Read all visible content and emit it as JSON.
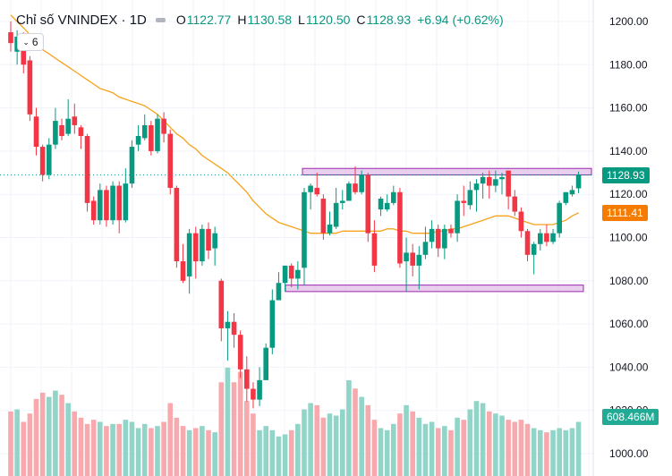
{
  "legend": {
    "title": "Chỉ số VNINDEX · 1D",
    "open_label": "O",
    "open": "1122.77",
    "high_label": "H",
    "high": "1130.58",
    "low_label": "L",
    "low": "1120.50",
    "close_label": "C",
    "close": "1128.93",
    "change": "+6.94 (+0.62%)"
  },
  "indicator_badge": {
    "count": "6"
  },
  "price_tags": {
    "last_price": "1128.93",
    "ma_value": "1111.41",
    "volume": "608.466M"
  },
  "colors": {
    "up": "#089981",
    "down": "#f23645",
    "ma": "#f7a21b",
    "zone": "#e1bee7",
    "zone_border": "#9c27b0",
    "vol_up": "#91d4c8",
    "vol_down": "#f7a9ad",
    "ma_tag": "#f57c00"
  },
  "chart_data": {
    "type": "candlestick",
    "symbol": "VNINDEX",
    "interval": "1D",
    "ylim": [
      1000,
      1200
    ],
    "yticks": [
      1000,
      1020,
      1040,
      1060,
      1080,
      1100,
      1120,
      1140,
      1160,
      1180,
      1200
    ],
    "candles": [
      [
        1195,
        1190,
        1200,
        1186
      ],
      [
        1186,
        1193,
        1196,
        1180
      ],
      [
        1192,
        1180,
        1195,
        1176
      ],
      [
        1182,
        1157,
        1184,
        1154
      ],
      [
        1156,
        1142,
        1160,
        1138
      ],
      [
        1142,
        1129,
        1143,
        1126
      ],
      [
        1129,
        1143,
        1146,
        1127
      ],
      [
        1143,
        1154,
        1160,
        1141
      ],
      [
        1152,
        1147,
        1155,
        1145
      ],
      [
        1148,
        1155,
        1164,
        1147
      ],
      [
        1156,
        1152,
        1162,
        1148
      ],
      [
        1151,
        1147,
        1152,
        1141
      ],
      [
        1147,
        1116,
        1148,
        1112
      ],
      [
        1117,
        1108,
        1119,
        1106
      ],
      [
        1108,
        1122,
        1125,
        1106
      ],
      [
        1122,
        1108,
        1124,
        1105
      ],
      [
        1108,
        1124,
        1126,
        1106
      ],
      [
        1124,
        1108,
        1126,
        1102
      ],
      [
        1108,
        1125,
        1132,
        1107
      ],
      [
        1125,
        1142,
        1145,
        1123
      ],
      [
        1143,
        1147,
        1152,
        1140
      ],
      [
        1146,
        1152,
        1157,
        1145
      ],
      [
        1152,
        1140,
        1154,
        1138
      ],
      [
        1140,
        1155,
        1157,
        1139
      ],
      [
        1155,
        1148,
        1158,
        1144
      ],
      [
        1148,
        1123,
        1150,
        1120
      ],
      [
        1123,
        1089,
        1124,
        1086
      ],
      [
        1089,
        1080,
        1097,
        1079
      ],
      [
        1082,
        1102,
        1104,
        1074
      ],
      [
        1102,
        1089,
        1105,
        1081
      ],
      [
        1089,
        1104,
        1106,
        1087
      ],
      [
        1104,
        1094,
        1107,
        1090
      ],
      [
        1095,
        1102,
        1105,
        1087
      ],
      [
        1080,
        1058,
        1081,
        1052
      ],
      [
        1058,
        1061,
        1066,
        1043
      ],
      [
        1061,
        1055,
        1065,
        1049
      ],
      [
        1055,
        1039,
        1057,
        1035
      ],
      [
        1039,
        1030,
        1045,
        1024
      ],
      [
        1030,
        1025,
        1033,
        1021
      ],
      [
        1025,
        1034,
        1040,
        1022
      ],
      [
        1034,
        1049,
        1051,
        1046
      ],
      [
        1049,
        1071,
        1076,
        1046
      ],
      [
        1071,
        1079,
        1084,
        1077
      ],
      [
        1079,
        1087,
        1087,
        1075
      ],
      [
        1087,
        1081,
        1088,
        1077
      ],
      [
        1081,
        1085,
        1089,
        1076
      ],
      [
        1086,
        1121,
        1123,
        1078
      ],
      [
        1121,
        1124,
        1125,
        1113
      ],
      [
        1123,
        1120,
        1130,
        1119
      ],
      [
        1118,
        1102,
        1120,
        1099
      ],
      [
        1102,
        1106,
        1112,
        1101
      ],
      [
        1105,
        1116,
        1123,
        1104
      ],
      [
        1116,
        1117,
        1122,
        1113
      ],
      [
        1117,
        1125,
        1126,
        1123
      ],
      [
        1125,
        1121,
        1133,
        1120
      ],
      [
        1121,
        1129,
        1131,
        1120
      ],
      [
        1129,
        1102,
        1130,
        1098
      ],
      [
        1102,
        1087,
        1108,
        1084
      ],
      [
        1113,
        1118,
        1119,
        1110
      ],
      [
        1113,
        1116,
        1120,
        1112
      ],
      [
        1116,
        1121,
        1124,
        1115
      ],
      [
        1121,
        1088,
        1123,
        1086
      ],
      [
        1089,
        1093,
        1100,
        1075
      ],
      [
        1093,
        1087,
        1097,
        1082
      ],
      [
        1087,
        1092,
        1096,
        1076
      ],
      [
        1092,
        1098,
        1105,
        1090
      ],
      [
        1098,
        1104,
        1108,
        1095
      ],
      [
        1104,
        1095,
        1106,
        1091
      ],
      [
        1095,
        1104,
        1106,
        1090
      ],
      [
        1104,
        1102,
        1106,
        1100
      ],
      [
        1102,
        1117,
        1120,
        1098
      ],
      [
        1117,
        1116,
        1124,
        1110
      ],
      [
        1115,
        1122,
        1126,
        1113
      ],
      [
        1122,
        1125,
        1127,
        1112
      ],
      [
        1125,
        1128,
        1130,
        1118
      ],
      [
        1128,
        1124,
        1131,
        1118
      ],
      [
        1124,
        1127,
        1131,
        1121
      ],
      [
        1127,
        1128,
        1130,
        1120
      ],
      [
        1131,
        1119,
        1131,
        1113
      ],
      [
        1119,
        1112,
        1122,
        1110
      ],
      [
        1112,
        1103,
        1114,
        1100
      ],
      [
        1103,
        1092,
        1104,
        1089
      ],
      [
        1092,
        1097,
        1098,
        1083
      ],
      [
        1097,
        1102,
        1104,
        1094
      ],
      [
        1102,
        1098,
        1106,
        1096
      ],
      [
        1098,
        1102,
        1104,
        1097
      ],
      [
        1102,
        1116,
        1117,
        1100
      ],
      [
        1116,
        1121,
        1121,
        1115
      ],
      [
        1120,
        1122,
        1124,
        1119
      ],
      [
        1122.77,
        1128.93,
        1130.58,
        1120.5
      ]
    ],
    "moving_average": [
      1203,
      1200,
      1197,
      1194,
      1190,
      1187,
      1185,
      1183,
      1181,
      1179,
      1177,
      1175,
      1173,
      1171,
      1169,
      1168,
      1167,
      1165,
      1164,
      1163,
      1162,
      1161,
      1159,
      1157,
      1154,
      1151,
      1148,
      1146,
      1143,
      1141,
      1138,
      1136,
      1134,
      1132,
      1130,
      1127,
      1124,
      1121,
      1117,
      1114,
      1111,
      1109,
      1107,
      1106,
      1105,
      1104,
      1103,
      1102,
      1102,
      1102,
      1102,
      1102,
      1103,
      1103,
      1103,
      1103,
      1103,
      1103,
      1103,
      1104,
      1104,
      1103,
      1103,
      1102,
      1102,
      1102,
      1102,
      1103,
      1103,
      1104,
      1104,
      1105,
      1106,
      1107,
      1108,
      1109,
      1110,
      1110,
      1110,
      1109,
      1108,
      1107,
      1106,
      1106,
      1106,
      1106,
      1107,
      1108,
      1110,
      1111.41
    ],
    "volume": [
      31,
      32,
      26,
      30,
      37,
      40,
      38,
      41,
      39,
      35,
      31,
      28,
      25,
      27,
      26,
      24,
      25,
      25,
      27,
      26,
      23,
      25,
      23,
      24,
      26,
      35,
      28,
      24,
      22,
      23,
      24,
      22,
      21,
      45,
      52,
      45,
      50,
      36,
      30,
      22,
      24,
      22,
      19,
      20,
      22,
      25,
      32,
      35,
      34,
      28,
      30,
      29,
      32,
      46,
      42,
      38,
      34,
      27,
      23,
      22,
      25,
      30,
      34,
      31,
      28,
      25,
      26,
      23,
      24,
      22,
      28,
      27,
      32,
      36,
      35,
      31,
      30,
      29,
      27,
      26,
      27,
      25,
      23,
      22,
      21,
      22,
      23,
      22,
      23,
      26
    ],
    "volume_max": 58,
    "zones": [
      {
        "top": 1132,
        "bottom": 1129
      },
      {
        "top": 1078,
        "bottom": 1075
      }
    ]
  }
}
